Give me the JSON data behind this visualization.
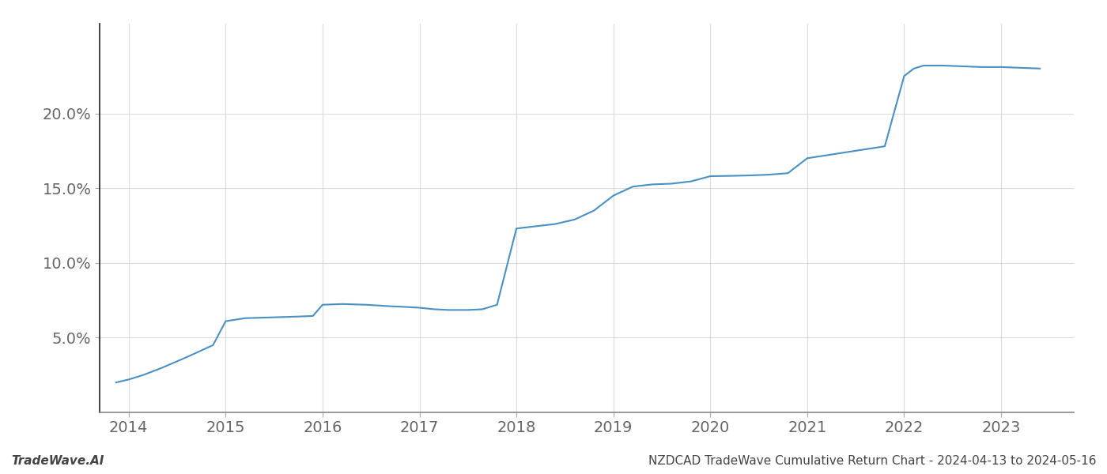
{
  "title": "NZDCAD TradeWave Cumulative Return Chart - 2024-04-13 to 2024-05-16",
  "background_color": "#ffffff",
  "line_color": "#4a90c4",
  "line_width": 1.5,
  "x_years": [
    2013.87,
    2014.0,
    2014.15,
    2014.35,
    2014.6,
    2014.87,
    2015.0,
    2015.2,
    2015.45,
    2015.7,
    2015.9,
    2016.0,
    2016.2,
    2016.45,
    2016.7,
    2016.87,
    2017.0,
    2017.15,
    2017.3,
    2017.5,
    2017.65,
    2017.8,
    2018.0,
    2018.2,
    2018.4,
    2018.6,
    2018.8,
    2019.0,
    2019.2,
    2019.4,
    2019.6,
    2019.8,
    2020.0,
    2020.2,
    2020.4,
    2020.6,
    2020.8,
    2021.0,
    2021.2,
    2021.4,
    2021.6,
    2021.8,
    2022.0,
    2022.1,
    2022.2,
    2022.4,
    2022.6,
    2022.8,
    2023.0,
    2023.2,
    2023.4
  ],
  "y_values": [
    2.0,
    2.2,
    2.5,
    3.0,
    3.7,
    4.5,
    6.1,
    6.3,
    6.35,
    6.4,
    6.45,
    7.2,
    7.25,
    7.2,
    7.1,
    7.05,
    7.0,
    6.9,
    6.85,
    6.85,
    6.9,
    7.2,
    12.3,
    12.45,
    12.6,
    12.9,
    13.5,
    14.5,
    15.1,
    15.25,
    15.3,
    15.45,
    15.8,
    15.82,
    15.85,
    15.9,
    16.0,
    17.0,
    17.2,
    17.4,
    17.6,
    17.8,
    22.5,
    23.0,
    23.2,
    23.2,
    23.15,
    23.1,
    23.1,
    23.05,
    23.0
  ],
  "xlim": [
    2013.7,
    2023.75
  ],
  "ylim": [
    0,
    26
  ],
  "yticks": [
    5.0,
    10.0,
    15.0,
    20.0
  ],
  "ytick_labels": [
    "5.0%",
    "10.0%",
    "15.0%",
    "20.0%"
  ],
  "xticks": [
    2014,
    2015,
    2016,
    2017,
    2018,
    2019,
    2020,
    2021,
    2022,
    2023
  ],
  "grid_color": "#cccccc",
  "grid_alpha": 0.7,
  "footer_left": "TradeWave.AI",
  "footer_right": "NZDCAD TradeWave Cumulative Return Chart - 2024-04-13 to 2024-05-16",
  "tick_fontsize": 14,
  "footer_fontsize": 11,
  "left_spine_color": "#222222",
  "bottom_spine_color": "#888888"
}
